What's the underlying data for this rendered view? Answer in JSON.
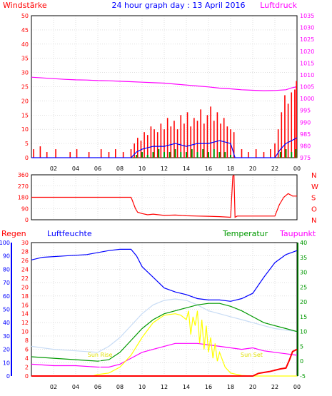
{
  "title": "24 hour graph day : 13 April 2016",
  "colors": {
    "red": "#ff0000",
    "magenta": "#ff00ff",
    "blue": "#0000ff",
    "green": "#009900",
    "yellow": "#ffff00",
    "lightblue": "#c8dcf5",
    "sun": "#e0e000"
  },
  "time_labels": [
    "02",
    "04",
    "06",
    "08",
    "10",
    "12",
    "14",
    "16",
    "18",
    "20",
    "22",
    "00"
  ],
  "chart_data": [
    {
      "type": "line",
      "title": "24 hour graph day : 13 April 2016",
      "left_axis_label": "Windstärke",
      "right_axis_label": "Luftdruck",
      "left_ticks": [
        0,
        5,
        10,
        15,
        20,
        25,
        30,
        35,
        40,
        45,
        50
      ],
      "right_ticks": [
        975,
        980,
        985,
        990,
        995,
        1000,
        1005,
        1010,
        1015,
        1020,
        1025,
        1030,
        1035
      ],
      "ylim_left": [
        0,
        50
      ],
      "ylim_right": [
        975,
        1035
      ],
      "xlim_hours": [
        0,
        24
      ],
      "series": [
        {
          "axis": "right",
          "color": "magenta",
          "kind": "line",
          "x": [
            0,
            1,
            2,
            3,
            4,
            5,
            6,
            7,
            8,
            9,
            10,
            11,
            12,
            13,
            14,
            15,
            16,
            17,
            18,
            19,
            20,
            21,
            22,
            23,
            23.5,
            24
          ],
          "values": [
            1009,
            1008.7,
            1008.4,
            1008.1,
            1007.9,
            1007.8,
            1007.6,
            1007.5,
            1007.3,
            1007.1,
            1006.9,
            1006.7,
            1006.5,
            1006.1,
            1005.7,
            1005.3,
            1004.9,
            1004.4,
            1004.1,
            1003.7,
            1003.5,
            1003.3,
            1003.4,
            1003.7,
            1004.5,
            1005
          ]
        },
        {
          "axis": "left",
          "color": "red",
          "kind": "spikes",
          "x": [
            0.2,
            0.8,
            1.4,
            2.2,
            3.5,
            4.1,
            5.2,
            6.3,
            7.0,
            7.6,
            8.3,
            9.0,
            9.3,
            9.6,
            9.9,
            10.2,
            10.5,
            10.8,
            11.1,
            11.4,
            11.7,
            12.0,
            12.3,
            12.6,
            12.9,
            13.2,
            13.5,
            13.8,
            14.1,
            14.4,
            14.7,
            15.0,
            15.3,
            15.6,
            15.9,
            16.2,
            16.5,
            16.8,
            17.1,
            17.4,
            17.7,
            18.0,
            18.3,
            19.0,
            19.6,
            20.3,
            21.0,
            21.6,
            22.0,
            22.3,
            22.6,
            22.9,
            23.2,
            23.5,
            23.8,
            23.95
          ],
          "values": [
            3,
            4,
            2,
            3,
            2,
            3,
            2,
            3,
            2,
            3,
            2,
            3,
            5,
            7,
            6,
            9,
            8,
            11,
            10,
            9,
            12,
            10,
            14,
            11,
            13,
            10,
            15,
            12,
            16,
            11,
            14,
            13,
            17,
            12,
            15,
            18,
            13,
            16,
            12,
            14,
            11,
            10,
            9,
            3,
            2,
            3,
            2,
            3,
            5,
            10,
            16,
            22,
            19,
            23,
            24,
            27
          ]
        },
        {
          "axis": "left",
          "color": "blue",
          "kind": "line",
          "x": [
            0,
            9,
            9.5,
            10,
            11,
            12,
            13,
            14,
            15,
            16,
            17,
            18,
            18.4,
            22,
            22.5,
            23,
            23.5,
            24
          ],
          "values": [
            0,
            0,
            2,
            3,
            4,
            4,
            5,
            4,
            5,
            5,
            6,
            5,
            0,
            0,
            3,
            5,
            6,
            7
          ]
        },
        {
          "axis": "left",
          "color": "green",
          "kind": "bars",
          "x": [
            9.5,
            10,
            10.5,
            11,
            11.5,
            12,
            12.5,
            13,
            13.5,
            14,
            14.5,
            15,
            15.5,
            16,
            16.5,
            17,
            17.5,
            18,
            22.5,
            23,
            23.5,
            23.9
          ],
          "values": [
            1,
            2,
            1,
            2,
            3,
            2,
            2,
            3,
            2,
            2,
            3,
            2,
            3,
            2,
            3,
            2,
            2,
            1,
            2,
            3,
            2,
            3
          ]
        }
      ]
    },
    {
      "type": "line",
      "title": "",
      "left_ticks": [
        0,
        90,
        180,
        270,
        360
      ],
      "right_labels": [
        "N",
        "W",
        "S",
        "O",
        "N"
      ],
      "ylim": [
        0,
        360
      ],
      "xlim_hours": [
        0,
        24
      ],
      "series": [
        {
          "color": "red",
          "kind": "line",
          "x": [
            0,
            9,
            9.1,
            9.4,
            9.6,
            10,
            10.5,
            11,
            12,
            13,
            14,
            15,
            16,
            17,
            18,
            18.2,
            18.3,
            18.4,
            18.6,
            18.8,
            22,
            22.4,
            22.8,
            23.2,
            23.6,
            24
          ],
          "values": [
            180,
            180,
            160,
            90,
            60,
            50,
            40,
            45,
            35,
            38,
            32,
            30,
            28,
            25,
            20,
            350,
            355,
            20,
            30,
            30,
            30,
            120,
            180,
            210,
            190,
            190
          ]
        }
      ]
    },
    {
      "type": "line",
      "title": "",
      "labels": {
        "rain": "Regen",
        "humidity": "Luftfeuchte",
        "temperature": "Temperatur",
        "dewpoint": "Taupunkt",
        "sunrise": "Sun Rise",
        "sunset": "Sun Set"
      },
      "humidity_ticks": [
        0,
        10,
        20,
        30,
        40,
        50,
        60,
        70,
        80,
        90,
        100
      ],
      "rain_ticks": [
        0,
        2,
        4,
        6,
        8,
        10,
        12,
        14,
        16,
        18,
        20,
        22,
        24,
        26,
        28,
        30
      ],
      "temperature_ticks": [
        -5,
        0,
        5,
        10,
        15,
        20,
        25,
        30,
        35,
        40
      ],
      "ylim_humidity": [
        0,
        100
      ],
      "ylim_rain": [
        0,
        30
      ],
      "ylim_temperature": [
        -5,
        40
      ],
      "xlim_hours": [
        0,
        24
      ],
      "sunrise_hour": 6.2,
      "sunset_hour": 19.9,
      "series": [
        {
          "name": "Luftfeuchte",
          "color": "blue",
          "axis": "humidity",
          "x": [
            0,
            1,
            3,
            5,
            7,
            8,
            9,
            9.5,
            10,
            11,
            12,
            13,
            14,
            15,
            16,
            17,
            18,
            19,
            20,
            21,
            22,
            23,
            24
          ],
          "values": [
            87,
            89,
            90,
            91,
            94,
            95,
            95,
            90,
            82,
            74,
            66,
            63,
            61,
            58,
            57,
            57,
            56,
            58,
            62,
            74,
            85,
            91,
            94
          ]
        },
        {
          "color": "lightblue",
          "axis": "temperature",
          "x": [
            0,
            2,
            4,
            6,
            7,
            8,
            9,
            10,
            11,
            12,
            13,
            14,
            15,
            16,
            17,
            18,
            19,
            20,
            21,
            22,
            23,
            24
          ],
          "values": [
            5,
            4,
            3.5,
            3,
            5,
            8,
            12,
            16,
            19,
            20.5,
            21,
            20.5,
            19,
            17,
            16,
            15,
            14,
            13,
            12,
            11,
            10.5,
            10
          ]
        },
        {
          "name": "Temperatur",
          "color": "green",
          "axis": "temperature",
          "x": [
            0,
            2,
            4,
            6,
            7,
            8,
            9,
            10,
            11,
            12,
            13,
            14,
            15,
            16,
            17,
            18,
            19,
            20,
            21,
            22,
            23,
            24
          ],
          "values": [
            1.5,
            1,
            0.5,
            0,
            0.5,
            3,
            7,
            11,
            14,
            16,
            17,
            18,
            19,
            19.5,
            19.5,
            18.5,
            17,
            15,
            13,
            12,
            11,
            10
          ]
        },
        {
          "name": "Taupunkt",
          "color": "magenta",
          "axis": "temperature",
          "x": [
            0,
            2,
            4,
            6,
            7,
            8,
            9,
            10,
            11,
            12,
            13,
            14,
            15,
            16,
            17,
            18,
            19,
            20,
            21,
            22,
            23,
            24
          ],
          "values": [
            -1,
            -1.5,
            -1.5,
            -2,
            -2,
            -1,
            1,
            3,
            4,
            5,
            6,
            6,
            6,
            5.5,
            5,
            4.5,
            4,
            4.5,
            3.5,
            3,
            2.5,
            2
          ]
        },
        {
          "color": "yellow",
          "axis": "temperature",
          "x": [
            0,
            5.5,
            6,
            7,
            8,
            8.5,
            9,
            10,
            11,
            12,
            13,
            13.5,
            14,
            14.2,
            14.4,
            14.6,
            14.8,
            15,
            15.2,
            15.4,
            15.6,
            15.8,
            16,
            16.2,
            16.4,
            16.6,
            16.8,
            17,
            17.5,
            18,
            19,
            20,
            24
          ],
          "values": [
            -5,
            -5,
            -4.5,
            -4,
            -2,
            0,
            2,
            8,
            13,
            15.5,
            16,
            15.5,
            14,
            17,
            9,
            15,
            12,
            17,
            6,
            14,
            4,
            12,
            3,
            8,
            1,
            6,
            0,
            3,
            -2,
            -4,
            -4.8,
            -5,
            -5
          ]
        },
        {
          "name": "Regen",
          "color": "red",
          "axis": "rain",
          "x": [
            0,
            20,
            20.5,
            21,
            21.5,
            22,
            22.5,
            23,
            23.3,
            23.6,
            24
          ],
          "values": [
            0,
            0,
            0.6,
            0.8,
            1,
            1.3,
            1.6,
            1.8,
            3.5,
            5.5,
            6
          ]
        }
      ]
    }
  ]
}
